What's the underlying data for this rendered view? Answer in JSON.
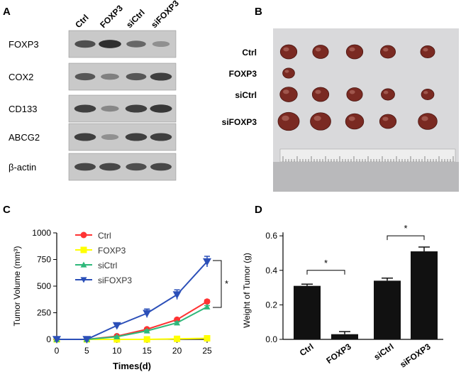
{
  "panels": {
    "a": {
      "letter": "A",
      "lanes": [
        "Ctrl",
        "FOXP3",
        "siCtrl",
        "siFOXP3"
      ],
      "blots": [
        {
          "name": "FOXP3",
          "intensity": [
            0.75,
            0.95,
            0.6,
            0.35
          ]
        },
        {
          "name": "COX2",
          "intensity": [
            0.7,
            0.45,
            0.7,
            0.85
          ]
        },
        {
          "name": "CD133",
          "intensity": [
            0.85,
            0.4,
            0.85,
            0.9
          ]
        },
        {
          "name": "ABCG2",
          "intensity": [
            0.85,
            0.35,
            0.85,
            0.85
          ]
        },
        {
          "name": "β-actin",
          "intensity": [
            0.8,
            0.8,
            0.75,
            0.8
          ]
        }
      ]
    },
    "b": {
      "letter": "B",
      "rows": [
        {
          "name": "Ctrl",
          "sizes": [
            0.7,
            0.65,
            0.7,
            0.6,
            0.55
          ]
        },
        {
          "name": "FOXP3",
          "sizes": [
            0.4,
            0,
            0,
            0,
            0
          ]
        },
        {
          "name": "siCtrl",
          "sizes": [
            0.75,
            0.7,
            0.65,
            0.5,
            0.45
          ]
        },
        {
          "name": "siFOXP3",
          "sizes": [
            1.0,
            0.95,
            0.8,
            0.7,
            0.85
          ]
        }
      ]
    },
    "c": {
      "letter": "C"
    },
    "d": {
      "letter": "D"
    }
  },
  "chart_data": [
    {
      "type": "line",
      "panel": "C",
      "xlabel": "Times(d)",
      "ylabel": "Tumor Volume (mm³)",
      "x": [
        0,
        5,
        10,
        15,
        20,
        25
      ],
      "xticks": [
        0,
        5,
        10,
        15,
        20,
        25
      ],
      "yticks": [
        0,
        250,
        500,
        750,
        1000
      ],
      "xlim": [
        0,
        25
      ],
      "ylim": [
        0,
        1000
      ],
      "legend_position": "top-center",
      "series": [
        {
          "name": "Ctrl",
          "color": "#ff3333",
          "marker": "circle",
          "values": [
            0,
            0,
            30,
            95,
            185,
            355
          ],
          "errors": [
            0,
            0,
            5,
            10,
            12,
            15
          ]
        },
        {
          "name": "FOXP3",
          "color": "#ffff00",
          "marker": "square",
          "values": [
            0,
            0,
            0,
            0,
            5,
            10
          ],
          "errors": [
            0,
            0,
            0,
            0,
            2,
            3
          ]
        },
        {
          "name": "siCtrl",
          "color": "#2eb87a",
          "marker": "triangle-up",
          "values": [
            0,
            0,
            25,
            80,
            155,
            305
          ],
          "errors": [
            0,
            0,
            5,
            8,
            10,
            12
          ]
        },
        {
          "name": "siFOXP3",
          "color": "#2b4fb8",
          "marker": "triangle-down",
          "values": [
            0,
            0,
            130,
            245,
            420,
            730
          ],
          "errors": [
            0,
            0,
            12,
            40,
            45,
            50
          ]
        }
      ],
      "annotations": [
        {
          "text": "*",
          "between": [
            "siCtrl",
            "siFOXP3"
          ],
          "at_x": 25
        }
      ]
    },
    {
      "type": "bar",
      "panel": "D",
      "ylabel": "Weight of Tumor (g)",
      "categories": [
        "Ctrl",
        "FOXP3",
        "siCtrl",
        "siFOXP3"
      ],
      "values": [
        0.31,
        0.03,
        0.34,
        0.51
      ],
      "errors": [
        0.01,
        0.015,
        0.015,
        0.025
      ],
      "yticks": [
        0.0,
        0.2,
        0.4,
        0.6
      ],
      "ylim": [
        0,
        0.65
      ],
      "bar_color": "#111111",
      "annotations": [
        {
          "text": "*",
          "between": [
            "Ctrl",
            "FOXP3"
          ]
        },
        {
          "text": "*",
          "between": [
            "siCtrl",
            "siFOXP3"
          ]
        }
      ]
    }
  ]
}
